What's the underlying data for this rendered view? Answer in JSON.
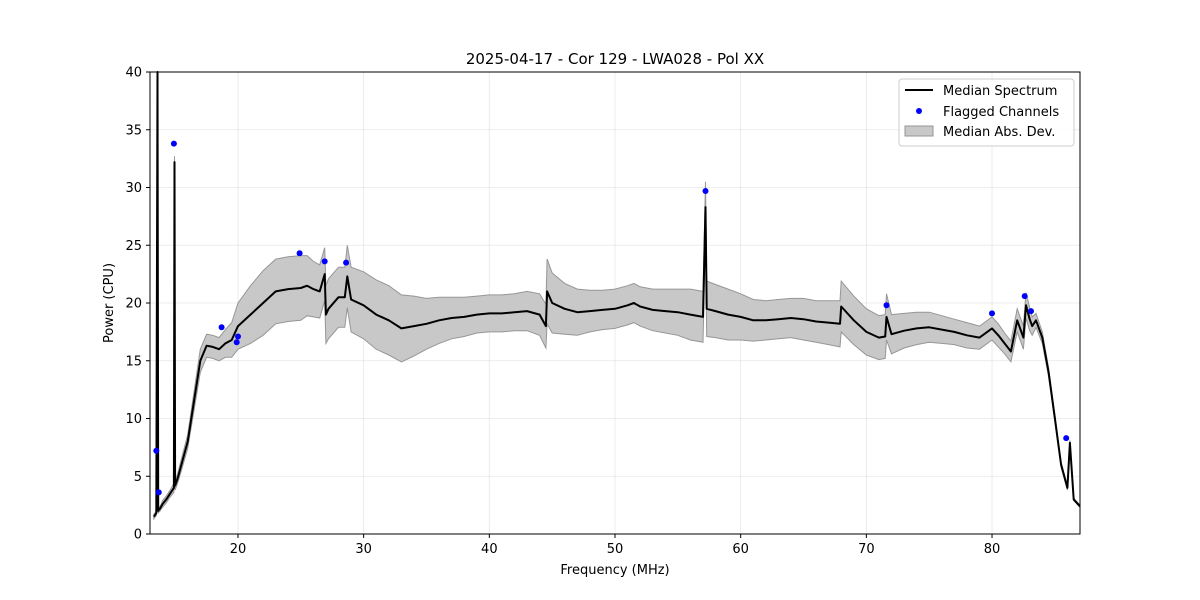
{
  "chart_data": {
    "type": "line",
    "title": "2025-04-17 - Cor 129 - LWA028 - Pol XX",
    "xlabel": "Frequency (MHz)",
    "ylabel": "Power (CPU)",
    "xlim": [
      13,
      87
    ],
    "ylim": [
      0,
      40
    ],
    "xticks": [
      20,
      30,
      40,
      50,
      60,
      70,
      80
    ],
    "yticks": [
      0,
      5,
      10,
      15,
      20,
      25,
      30,
      35,
      40
    ],
    "grid": true,
    "legend": {
      "position": "top-right",
      "entries": [
        "Median Spectrum",
        "Flagged Channels",
        "Median Abs. Dev."
      ]
    },
    "colors": {
      "median": "#000000",
      "flagged": "#0000ff",
      "band": "#c8c8c8",
      "band_edge": "#969696"
    },
    "series": [
      {
        "name": "Median Spectrum",
        "x": [
          13.3,
          13.5,
          13.6,
          13.65,
          13.7,
          13.8,
          13.9,
          14.0,
          14.3,
          14.6,
          14.9,
          14.95,
          15.0,
          15.2,
          15.5,
          16.0,
          16.5,
          17.0,
          17.5,
          18.0,
          18.5,
          19.0,
          19.5,
          20.0,
          21.0,
          22.0,
          23.0,
          24.0,
          25.0,
          25.5,
          26.0,
          26.5,
          26.9,
          27.0,
          27.2,
          28.0,
          28.5,
          28.7,
          29.0,
          30.0,
          31.0,
          32.0,
          33.0,
          34.0,
          35.0,
          36.0,
          37.0,
          38.0,
          39.0,
          40.0,
          41.0,
          42.0,
          43.0,
          44.0,
          44.5,
          44.6,
          45.0,
          46.0,
          47.0,
          48.0,
          49.0,
          50.0,
          51.0,
          51.5,
          52.0,
          53.0,
          54.0,
          55.0,
          56.0,
          57.0,
          57.2,
          57.3,
          58.0,
          59.0,
          60.0,
          61.0,
          62.0,
          63.0,
          64.0,
          65.0,
          66.0,
          67.0,
          67.9,
          68.0,
          69.0,
          70.0,
          71.0,
          71.5,
          71.6,
          72.0,
          73.0,
          74.0,
          75.0,
          76.0,
          77.0,
          78.0,
          79.0,
          80.0,
          80.5,
          81.0,
          81.5,
          82.0,
          82.5,
          82.7,
          83.0,
          83.2,
          83.5,
          84.0,
          84.5,
          85.0,
          85.5,
          86.0,
          86.2,
          86.5,
          87.0
        ],
        "y": [
          1.5,
          1.8,
          40,
          2.0,
          2.1,
          2.2,
          2.4,
          2.6,
          3.0,
          3.5,
          4.0,
          32.2,
          4.2,
          4.8,
          6.0,
          8.0,
          11.5,
          15.0,
          16.3,
          16.2,
          16.0,
          16.5,
          16.8,
          18.0,
          19.0,
          20.0,
          21.0,
          21.2,
          21.3,
          21.5,
          21.2,
          21.0,
          22.5,
          19.0,
          19.5,
          20.5,
          20.5,
          22.3,
          20.3,
          19.8,
          19.0,
          18.5,
          17.8,
          18.0,
          18.2,
          18.5,
          18.7,
          18.8,
          19.0,
          19.1,
          19.1,
          19.2,
          19.3,
          19.0,
          18.0,
          21.0,
          20.0,
          19.5,
          19.2,
          19.3,
          19.4,
          19.5,
          19.8,
          20.0,
          19.7,
          19.4,
          19.3,
          19.2,
          19.0,
          18.8,
          28.3,
          19.5,
          19.3,
          19.0,
          18.8,
          18.5,
          18.5,
          18.6,
          18.7,
          18.6,
          18.4,
          18.3,
          18.2,
          19.7,
          18.5,
          17.5,
          17.0,
          17.1,
          18.8,
          17.3,
          17.6,
          17.8,
          17.9,
          17.7,
          17.5,
          17.2,
          17.0,
          17.8,
          17.2,
          16.5,
          15.8,
          18.5,
          17.0,
          19.8,
          18.6,
          18.0,
          18.5,
          17.0,
          14.0,
          10.0,
          6.0,
          4.0,
          7.9,
          3.0,
          2.4
        ],
        "mad": [
          0.2,
          0.2,
          0.5,
          0.2,
          0.2,
          0.2,
          0.2,
          0.3,
          0.3,
          0.3,
          0.4,
          0.5,
          0.4,
          0.4,
          0.5,
          0.6,
          0.8,
          1.0,
          1.0,
          1.0,
          1.0,
          1.2,
          1.5,
          2.0,
          2.5,
          2.8,
          2.8,
          2.8,
          2.8,
          2.6,
          2.4,
          2.3,
          2.3,
          2.5,
          2.6,
          2.6,
          2.6,
          2.7,
          2.8,
          2.9,
          3.0,
          3.0,
          2.9,
          2.6,
          2.2,
          2.0,
          1.8,
          1.7,
          1.6,
          1.6,
          1.6,
          1.6,
          1.7,
          1.8,
          1.9,
          2.8,
          2.6,
          2.2,
          2.0,
          1.8,
          1.7,
          1.7,
          1.7,
          1.7,
          1.7,
          1.8,
          1.9,
          2.0,
          2.2,
          2.2,
          2.2,
          2.4,
          2.3,
          2.2,
          2.0,
          1.8,
          1.7,
          1.7,
          1.7,
          1.8,
          1.8,
          1.9,
          2.0,
          2.2,
          2.1,
          2.0,
          1.9,
          1.9,
          2.0,
          1.7,
          1.5,
          1.4,
          1.3,
          1.2,
          1.1,
          1.1,
          1.0,
          1.0,
          1.0,
          0.9,
          0.9,
          1.0,
          1.0,
          1.1,
          1.0,
          0.8,
          0.6,
          0.5,
          0.4,
          0.3,
          0.2,
          0.2,
          0.2,
          0.1,
          0.1
        ]
      },
      {
        "name": "Flagged Channels",
        "x": [
          13.5,
          13.7,
          14.9,
          18.7,
          19.9,
          20.0,
          24.9,
          26.9,
          28.6,
          57.2,
          71.6,
          80.0,
          82.6,
          83.1,
          85.9
        ],
        "y": [
          7.2,
          3.6,
          33.8,
          17.9,
          16.6,
          17.1,
          24.3,
          23.6,
          23.5,
          29.7,
          19.8,
          19.1,
          20.6,
          19.3,
          8.3
        ]
      }
    ]
  }
}
